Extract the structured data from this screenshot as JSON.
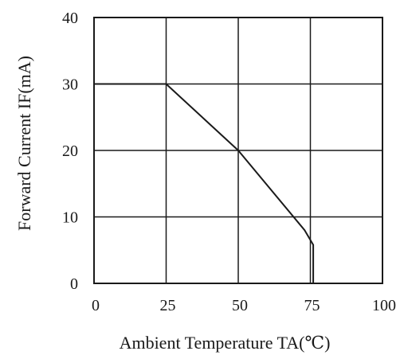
{
  "chart_data": {
    "type": "line",
    "title": "",
    "xlabel": "Ambient Temperature TA(℃)",
    "ylabel": "Forward Current IF(mA)",
    "xlim": [
      0,
      100
    ],
    "ylim": [
      0,
      40
    ],
    "x_ticks": [
      0,
      25,
      50,
      75,
      100
    ],
    "y_ticks": [
      0,
      10,
      20,
      30,
      40
    ],
    "x_tick_labels": [
      "0",
      "25",
      "50",
      "75",
      "100"
    ],
    "y_tick_labels": [
      "0",
      "10",
      "20",
      "30",
      "40"
    ],
    "grid": true,
    "series": [
      {
        "x": [
          0,
          25,
          50,
          73,
          76,
          76
        ],
        "y": [
          30,
          30,
          20,
          8,
          5.8,
          0
        ]
      }
    ],
    "colors": {
      "line": "#1a1a1a",
      "grid": "#1a1a1a",
      "text": "#1a1a1a",
      "background": "#ffffff"
    }
  }
}
